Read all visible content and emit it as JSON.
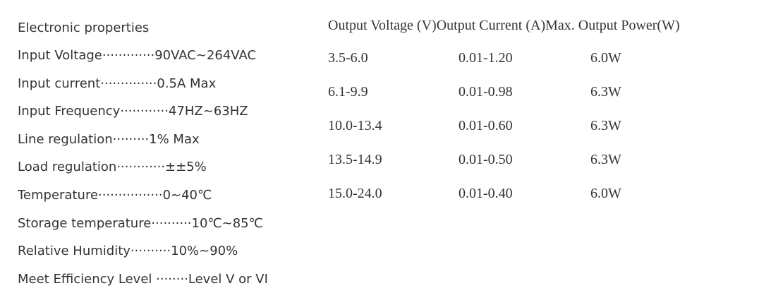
{
  "properties": {
    "title": "Electronic properties",
    "items": [
      "Input Voltage·············90VAC~264VAC",
      "Input current··············0.5A Max",
      "Input Frequency············47HZ~63HZ",
      "Line regulation·········1% Max",
      "Load regulation············±±5%",
      "Temperature················0~40℃",
      "Storage temperature··········10℃~85℃",
      "Relative Humidity··········10%~90%",
      "Meet Efficiency Level ········Level V or VI"
    ]
  },
  "specs": {
    "header": "Output Voltage (V)Output Current (A)Max. Output Power(W)",
    "rows": [
      [
        "3.5-6.0",
        "0.01-1.20",
        "6.0W"
      ],
      [
        "6.1-9.9",
        "0.01-0.98",
        "6.3W"
      ],
      [
        "10.0-13.4",
        "0.01-0.60",
        "6.3W"
      ],
      [
        "13.5-14.9",
        "0.01-0.50",
        "6.3W"
      ],
      [
        "15.0-24.0",
        "0.01-0.40",
        "6.0W"
      ]
    ]
  }
}
